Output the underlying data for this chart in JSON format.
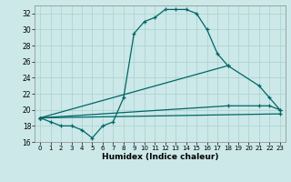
{
  "xlabel": "Humidex (Indice chaleur)",
  "bg_color": "#cce8e8",
  "line_color": "#006666",
  "grid_color": "#aad0d0",
  "xlim": [
    -0.5,
    23.5
  ],
  "ylim": [
    16,
    33
  ],
  "xticks": [
    0,
    1,
    2,
    3,
    4,
    5,
    6,
    7,
    8,
    9,
    10,
    11,
    12,
    13,
    14,
    15,
    16,
    17,
    18,
    19,
    20,
    21,
    22,
    23
  ],
  "yticks": [
    16,
    18,
    20,
    22,
    24,
    26,
    28,
    30,
    32
  ],
  "line1_x": [
    0,
    1,
    2,
    3,
    4,
    5,
    6,
    7,
    8,
    9,
    10,
    11,
    12,
    13,
    14,
    15,
    16,
    17,
    18
  ],
  "line1_y": [
    19.0,
    18.5,
    18.0,
    18.0,
    17.5,
    16.5,
    18.0,
    18.5,
    21.5,
    29.5,
    31.0,
    31.5,
    32.5,
    32.5,
    32.5,
    32.0,
    30.0,
    27.0,
    25.5
  ],
  "line2_x": [
    0,
    18,
    21,
    22,
    23
  ],
  "line2_y": [
    19.0,
    25.5,
    23.0,
    21.5,
    20.0
  ],
  "line3_x": [
    0,
    18,
    21,
    22,
    23
  ],
  "line3_y": [
    19.0,
    20.5,
    20.5,
    20.5,
    20.0
  ],
  "line4_x": [
    0,
    23
  ],
  "line4_y": [
    19.0,
    19.5
  ]
}
